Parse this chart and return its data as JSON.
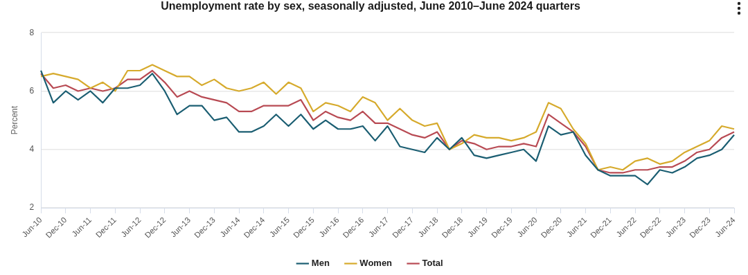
{
  "chart_data": {
    "type": "line",
    "title": "Unemployment rate by sex, seasonally adjusted, June 2010–June 2024 quarters",
    "ylabel": "Percent",
    "categories": [
      "Jun-10",
      null,
      "Dec-10",
      null,
      "Jun-11",
      null,
      "Dec-11",
      null,
      "Jun-12",
      null,
      "Dec-12",
      null,
      "Jun-13",
      null,
      "Dec-13",
      null,
      "Jun-14",
      null,
      "Dec-14",
      null,
      "Jun-15",
      null,
      "Dec-15",
      null,
      "Jun-16",
      null,
      "Dec-16",
      null,
      "Jun-17",
      null,
      "Dec-17",
      null,
      "Jun-18",
      null,
      "Dec-18",
      null,
      "Jun-19",
      null,
      "Dec-19",
      null,
      "Jun-20",
      null,
      "Dec-20",
      null,
      "Jun-21",
      null,
      "Dec-21",
      null,
      "Jun-22",
      null,
      "Dec-22",
      null,
      "Jun-23",
      null,
      "Dec-23",
      null,
      "Jun-24"
    ],
    "series": [
      {
        "name": "Men",
        "color": "#1b5e72",
        "values": [
          6.7,
          5.6,
          6.0,
          5.7,
          6.0,
          5.6,
          6.1,
          6.1,
          6.2,
          6.6,
          6.0,
          5.2,
          5.5,
          5.5,
          5.0,
          5.1,
          4.6,
          4.6,
          4.8,
          5.2,
          4.8,
          5.2,
          4.7,
          5.0,
          4.7,
          4.7,
          4.8,
          4.3,
          4.8,
          4.1,
          4.0,
          3.9,
          4.4,
          4.0,
          4.4,
          3.8,
          3.7,
          3.8,
          3.9,
          4.0,
          3.6,
          4.8,
          4.5,
          4.6,
          3.8,
          3.3,
          3.1,
          3.1,
          3.1,
          2.8,
          3.3,
          3.2,
          3.4,
          3.7,
          3.8,
          4.0,
          4.5
        ]
      },
      {
        "name": "Women",
        "color": "#d6aa2c",
        "values": [
          6.5,
          6.6,
          6.5,
          6.4,
          6.1,
          6.3,
          6.0,
          6.7,
          6.7,
          6.9,
          6.7,
          6.5,
          6.5,
          6.2,
          6.4,
          6.1,
          6.0,
          6.1,
          6.3,
          5.9,
          6.3,
          6.1,
          5.3,
          5.6,
          5.5,
          5.3,
          5.8,
          5.6,
          5.0,
          5.4,
          5.0,
          4.8,
          4.9,
          4.0,
          4.2,
          4.5,
          4.4,
          4.4,
          4.3,
          4.4,
          4.6,
          5.6,
          5.4,
          4.7,
          4.2,
          3.3,
          3.4,
          3.3,
          3.6,
          3.7,
          3.5,
          3.6,
          3.9,
          4.1,
          4.3,
          4.8,
          4.7
        ]
      },
      {
        "name": "Total",
        "color": "#b84a53",
        "values": [
          6.6,
          6.1,
          6.2,
          6.0,
          6.1,
          6.0,
          6.1,
          6.4,
          6.4,
          6.7,
          6.3,
          5.8,
          6.0,
          5.8,
          5.7,
          5.6,
          5.3,
          5.3,
          5.5,
          5.5,
          5.5,
          5.7,
          5.0,
          5.3,
          5.1,
          5.0,
          5.3,
          4.9,
          4.9,
          4.7,
          4.5,
          4.4,
          4.6,
          4.0,
          4.3,
          4.2,
          4.0,
          4.1,
          4.1,
          4.2,
          4.1,
          5.2,
          4.9,
          4.6,
          4.1,
          3.3,
          3.2,
          3.2,
          3.3,
          3.3,
          3.4,
          3.4,
          3.6,
          3.9,
          4.0,
          4.4,
          4.6
        ]
      }
    ],
    "ylim": [
      2,
      8
    ],
    "yticks": [
      2,
      4,
      6,
      8
    ],
    "grid": "y",
    "legend": "bottom",
    "marker": "none",
    "line_style": "solid"
  }
}
